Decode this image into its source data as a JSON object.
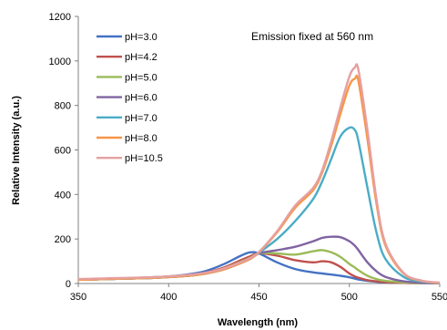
{
  "chart_data": {
    "type": "line",
    "title": "",
    "annotation": "Emission fixed at 560 nm",
    "xlabel": "Wavelength  (nm)",
    "ylabel": "Relative Intensity (a.u.)",
    "xlim": [
      350,
      550
    ],
    "ylim": [
      0,
      1200
    ],
    "xticks": [
      350,
      400,
      450,
      500,
      550
    ],
    "xtick_labels": [
      "350",
      "400",
      "450",
      "500",
      "550"
    ],
    "yticks": [
      0,
      200,
      400,
      600,
      800,
      1000,
      1200
    ],
    "ytick_labels": [
      "0",
      "200",
      "400",
      "600",
      "800",
      "1000",
      "1200"
    ],
    "grid": false,
    "legend_position": "top-left",
    "x": [
      350,
      360,
      370,
      380,
      390,
      400,
      410,
      420,
      430,
      440,
      445,
      450,
      460,
      470,
      480,
      485,
      490,
      495,
      500,
      503,
      505,
      510,
      515,
      520,
      530,
      540,
      550
    ],
    "series": [
      {
        "name": "pH=3.0",
        "color": "#4472C4",
        "values": [
          18,
          20,
          22,
          25,
          28,
          32,
          40,
          55,
          85,
          125,
          140,
          135,
          95,
          65,
          50,
          45,
          40,
          35,
          28,
          22,
          18,
          12,
          8,
          5,
          3,
          2,
          2
        ]
      },
      {
        "name": "pH=4.2",
        "color": "#C0504D",
        "values": [
          17,
          19,
          21,
          23,
          25,
          30,
          36,
          48,
          70,
          105,
          122,
          136,
          125,
          105,
          95,
          100,
          95,
          75,
          45,
          32,
          26,
          15,
          10,
          6,
          3,
          2,
          2
        ]
      },
      {
        "name": "pH=5.0",
        "color": "#9BBB59",
        "values": [
          17,
          19,
          21,
          23,
          25,
          29,
          35,
          46,
          66,
          98,
          115,
          136,
          135,
          130,
          145,
          150,
          140,
          120,
          88,
          72,
          60,
          35,
          20,
          12,
          5,
          3,
          2
        ]
      },
      {
        "name": "pH=6.0",
        "color": "#8064A2",
        "values": [
          17,
          19,
          21,
          23,
          25,
          29,
          34,
          44,
          62,
          92,
          110,
          136,
          150,
          165,
          190,
          205,
          210,
          208,
          190,
          170,
          150,
          95,
          55,
          30,
          10,
          4,
          2
        ]
      },
      {
        "name": "pH=7.0",
        "color": "#4BACC6",
        "values": [
          17,
          19,
          21,
          23,
          25,
          29,
          34,
          44,
          62,
          92,
          110,
          138,
          200,
          280,
          380,
          460,
          560,
          660,
          700,
          690,
          640,
          430,
          230,
          110,
          30,
          8,
          3
        ]
      },
      {
        "name": "pH=8.0",
        "color": "#F79646",
        "values": [
          17,
          19,
          21,
          23,
          25,
          29,
          34,
          44,
          62,
          92,
          110,
          140,
          230,
          340,
          420,
          500,
          620,
          760,
          890,
          920,
          910,
          650,
          360,
          170,
          45,
          12,
          3
        ]
      },
      {
        "name": "pH=10.5",
        "color": "#E6A0A0",
        "values": [
          20,
          22,
          24,
          26,
          28,
          32,
          38,
          48,
          66,
          96,
          114,
          142,
          235,
          350,
          430,
          510,
          640,
          790,
          930,
          970,
          960,
          690,
          380,
          180,
          48,
          13,
          4
        ]
      }
    ]
  }
}
